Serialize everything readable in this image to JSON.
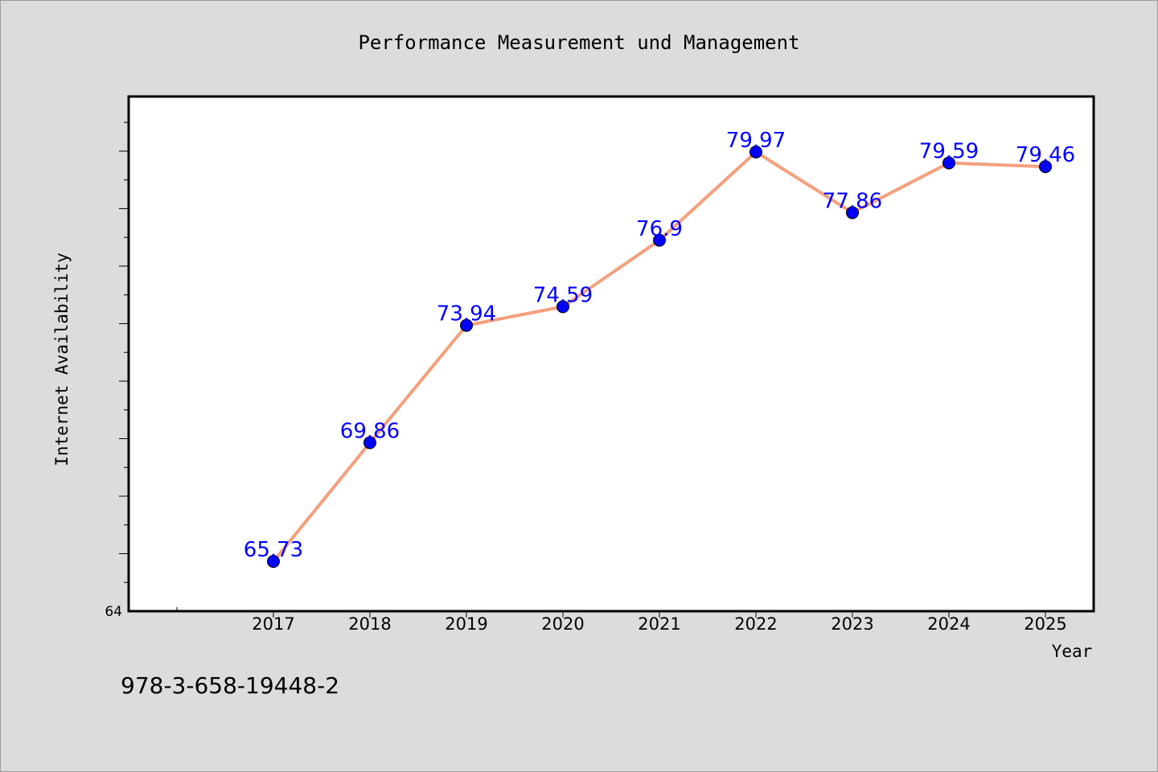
{
  "chart_data": {
    "type": "line",
    "title": "Performance Measurement und Management",
    "xlabel": "Year",
    "ylabel": "Internet Availability",
    "categories": [
      "2017",
      "2018",
      "2019",
      "2020",
      "2021",
      "2022",
      "2023",
      "2024",
      "2025"
    ],
    "series": [
      {
        "values": [
          65.73,
          69.86,
          73.94,
          74.59,
          76.9,
          79.97,
          77.86,
          79.59,
          79.46
        ],
        "data_labels": [
          "65.73",
          "69.86",
          "73.94",
          "74.59",
          "76.9",
          "79.97",
          "77.86",
          "79.59",
          "79.46"
        ],
        "line_color": "#f4a07c",
        "marker_color": "#0000ff"
      }
    ],
    "y_tick_labels": [
      "64"
    ],
    "ylim": [
      64,
      81.9
    ],
    "grid": false,
    "legend": "none",
    "label_color": "#0000ff",
    "background_color": "#dcdcdc",
    "plot_background_color": "#ffffff"
  },
  "footer": {
    "isbn": "978-3-658-19448-2"
  }
}
